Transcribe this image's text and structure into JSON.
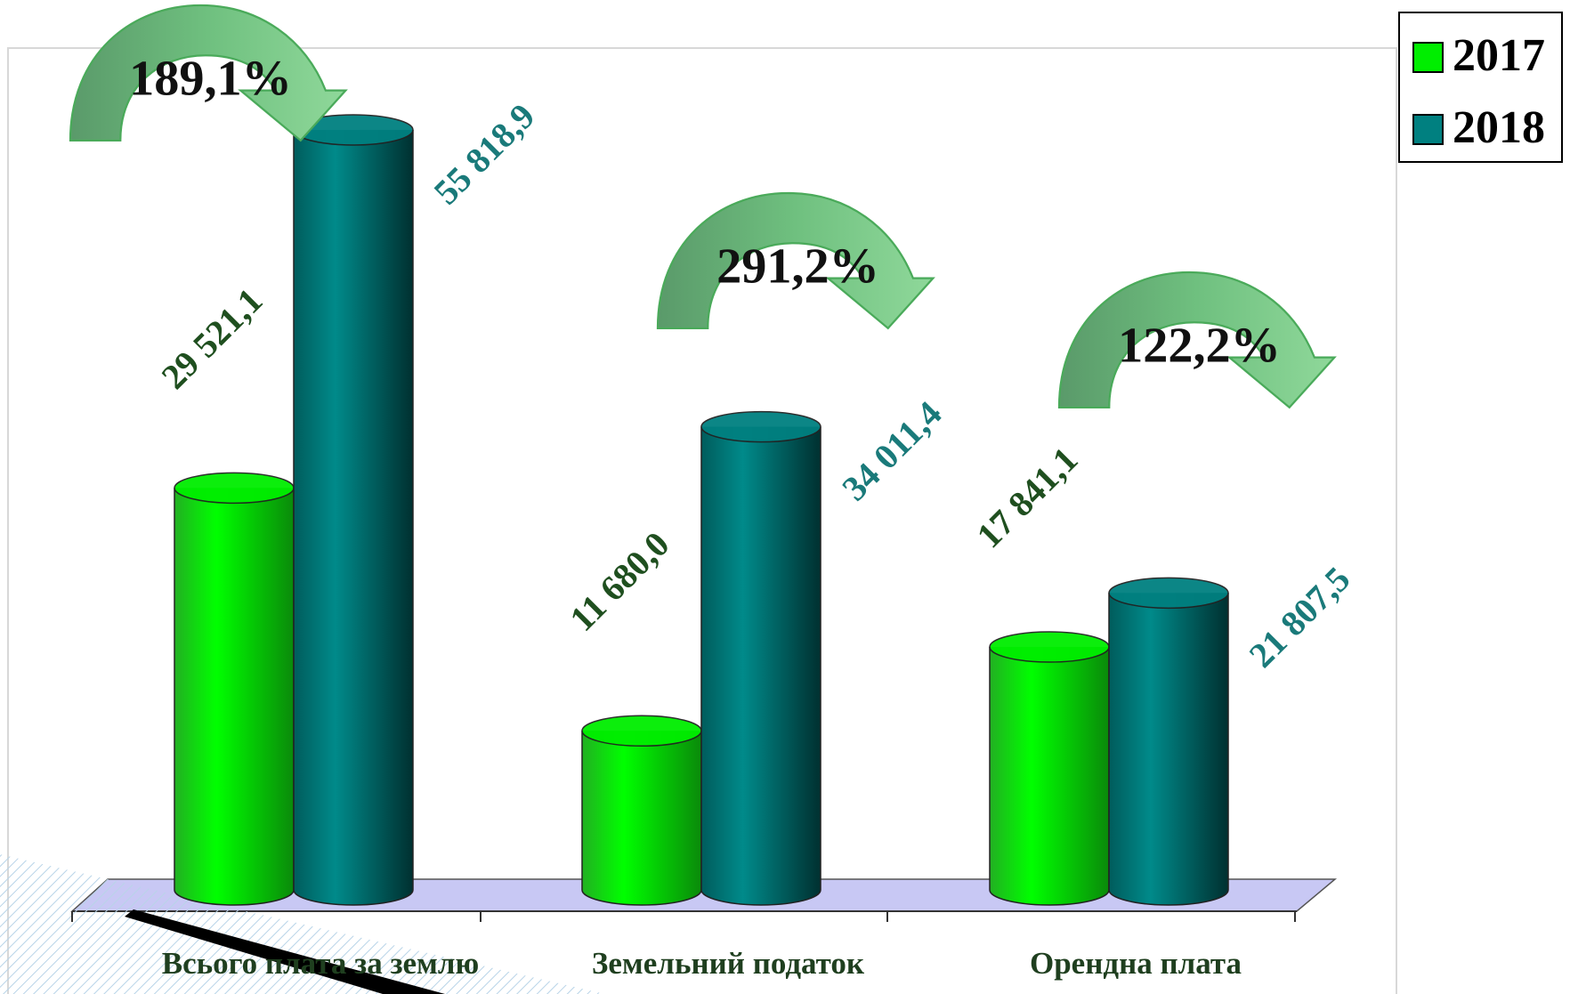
{
  "chart_data": {
    "type": "bar3d",
    "categories": [
      "Всього плата за землю",
      "Земельний податок",
      "Орендна плата"
    ],
    "series": [
      {
        "name": "2017",
        "color": "#00ee00",
        "label_color": "#1f4f1f",
        "values": [
          29521.1,
          11680.0,
          17841.1
        ],
        "value_labels": [
          "29 521,1",
          "11 680,0",
          "17 841,1"
        ]
      },
      {
        "name": "2018",
        "color": "#008080",
        "label_color": "#1a7a7a",
        "values": [
          55818.9,
          34011.4,
          21807.5
        ],
        "value_labels": [
          "55 818,9",
          "34 011,4",
          "21 807,5"
        ]
      }
    ],
    "annotations": [
      "189,1%",
      "291,2%",
      "122,2%"
    ],
    "legend": "top-right"
  }
}
